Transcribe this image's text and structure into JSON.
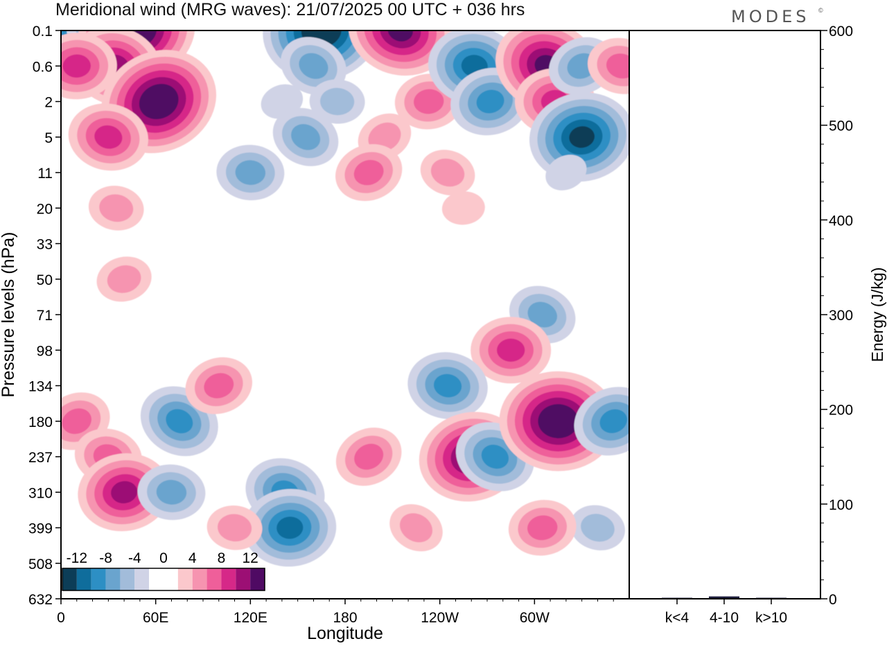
{
  "header": {
    "title": "Meridional wind (MRG waves):  21/07/2025  00 UTC  + 036 hrs",
    "logo": "MODES",
    "logo_mark": "©"
  },
  "chart_data": [
    {
      "type": "heatmap",
      "title": "Meridional wind (MRG waves):  21/07/2025  00 UTC  + 036 hrs",
      "xlabel": "Longitude",
      "ylabel": "Pressure levels (hPa)",
      "x_ticks": [
        "0",
        "60E",
        "120E",
        "180",
        "120W",
        "60W"
      ],
      "x_tick_values": [
        0,
        60,
        120,
        180,
        240,
        300
      ],
      "xlim": [
        0,
        360
      ],
      "y_ticks": [
        "0.1",
        "0.6",
        "2",
        "5",
        "11",
        "20",
        "33",
        "50",
        "71",
        "98",
        "134",
        "180",
        "237",
        "310",
        "399",
        "508",
        "632"
      ],
      "colorbar": {
        "labels": [
          "-12",
          "-8",
          "-4",
          "0",
          "4",
          "8",
          "12"
        ],
        "bins": [
          -14,
          -12,
          -10,
          -8,
          -6,
          -4,
          -2,
          0,
          2,
          4,
          6,
          8,
          10,
          12,
          14
        ],
        "colors": [
          "#0c3d57",
          "#0f6d9c",
          "#2d8fc4",
          "#6aa4ce",
          "#a2bcda",
          "#d0d3e6",
          "#ffffff",
          "#ffffff",
          "#fbc8cc",
          "#f694b0",
          "#ef5f9a",
          "#d62888",
          "#9c0f74",
          "#4f0a63"
        ]
      },
      "blobs": [
        {
          "lon": 5,
          "lev": 0.1,
          "value": -8
        },
        {
          "lon": 25,
          "lev": 0.1,
          "value": -6
        },
        {
          "lon": 48,
          "lev": 0.1,
          "value": 14
        },
        {
          "lon": 35,
          "lev": 0.6,
          "value": 10
        },
        {
          "lon": 10,
          "lev": 0.6,
          "value": 9
        },
        {
          "lon": 62,
          "lev": 2,
          "value": 14
        },
        {
          "lon": 30,
          "lev": 5,
          "value": 9
        },
        {
          "lon": 165,
          "lev": 0.1,
          "value": -15
        },
        {
          "lon": 160,
          "lev": 0.6,
          "value": -6
        },
        {
          "lon": 175,
          "lev": 2,
          "value": -4
        },
        {
          "lon": 140,
          "lev": 2,
          "value": -3
        },
        {
          "lon": 215,
          "lev": 0.1,
          "value": 12
        },
        {
          "lon": 233,
          "lev": 2,
          "value": 6
        },
        {
          "lon": 205,
          "lev": 5,
          "value": 5
        },
        {
          "lon": 262,
          "lev": 0.6,
          "value": -11
        },
        {
          "lon": 272,
          "lev": 2,
          "value": -9
        },
        {
          "lon": 308,
          "lev": 0.6,
          "value": 12
        },
        {
          "lon": 313,
          "lev": 2,
          "value": 9
        },
        {
          "lon": 330,
          "lev": 0.6,
          "value": -7
        },
        {
          "lon": 355,
          "lev": 0.6,
          "value": 6
        },
        {
          "lon": 330,
          "lev": 5,
          "value": -13
        },
        {
          "lon": 155,
          "lev": 5,
          "value": -6
        },
        {
          "lon": 120,
          "lev": 11,
          "value": -6
        },
        {
          "lon": 195,
          "lev": 11,
          "value": 6
        },
        {
          "lon": 245,
          "lev": 11,
          "value": 5
        },
        {
          "lon": 255,
          "lev": 20,
          "value": 3
        },
        {
          "lon": 320,
          "lev": 11,
          "value": -3
        },
        {
          "lon": 35,
          "lev": 20,
          "value": 4
        },
        {
          "lon": 40,
          "lev": 50,
          "value": 4
        },
        {
          "lon": 305,
          "lev": 71,
          "value": -7
        },
        {
          "lon": 285,
          "lev": 98,
          "value": 8
        },
        {
          "lon": 10,
          "lev": 180,
          "value": 6
        },
        {
          "lon": 30,
          "lev": 237,
          "value": 6
        },
        {
          "lon": 40,
          "lev": 310,
          "value": 10
        },
        {
          "lon": 75,
          "lev": 180,
          "value": -9
        },
        {
          "lon": 70,
          "lev": 310,
          "value": -6
        },
        {
          "lon": 100,
          "lev": 134,
          "value": 7
        },
        {
          "lon": 142,
          "lev": 310,
          "value": -8
        },
        {
          "lon": 145,
          "lev": 399,
          "value": -10
        },
        {
          "lon": 195,
          "lev": 237,
          "value": 7
        },
        {
          "lon": 245,
          "lev": 134,
          "value": -8
        },
        {
          "lon": 260,
          "lev": 237,
          "value": 12
        },
        {
          "lon": 275,
          "lev": 237,
          "value": -8
        },
        {
          "lon": 315,
          "lev": 180,
          "value": 14
        },
        {
          "lon": 350,
          "lev": 180,
          "value": -8
        },
        {
          "lon": 340,
          "lev": 399,
          "value": -4
        },
        {
          "lon": 305,
          "lev": 399,
          "value": 6
        },
        {
          "lon": 225,
          "lev": 399,
          "value": 4
        },
        {
          "lon": 110,
          "lev": 399,
          "value": 5
        }
      ]
    },
    {
      "type": "bar",
      "categories": [
        "k<4",
        "4-10",
        "k>10"
      ],
      "values": [
        0.5,
        2.5,
        0.3
      ],
      "ylabel": "Energy (J/kg)",
      "ylim": [
        0,
        600
      ],
      "y_ticks": [
        "0",
        "100",
        "200",
        "300",
        "400",
        "500",
        "600"
      ],
      "bar_color": "#1a1a3a"
    }
  ]
}
